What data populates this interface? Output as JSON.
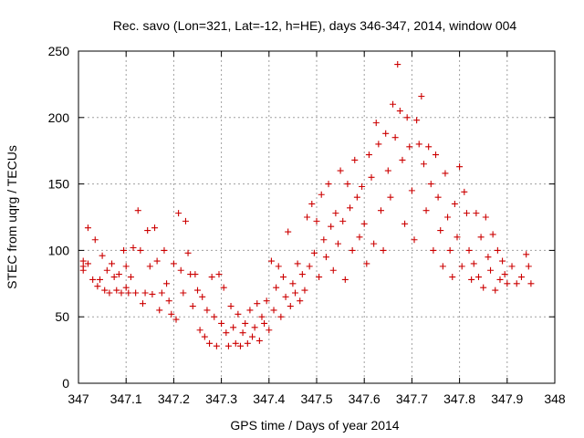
{
  "chart_data": {
    "type": "scatter",
    "title": "Rec. savo (Lon=321, Lat=-12, h=HE), days 346-347, 2014, window 004",
    "xlabel": "GPS time / Days of year 2014",
    "ylabel": "STEC from uqrg / TECUs",
    "xlim": [
      347,
      348
    ],
    "ylim": [
      0,
      250
    ],
    "xticks": [
      347,
      347.1,
      347.2,
      347.3,
      347.4,
      347.5,
      347.6,
      347.7,
      347.8,
      347.9,
      348
    ],
    "xtick_labels": [
      "347",
      "347.1",
      "347.2",
      "347.3",
      "347.4",
      "347.5",
      "347.6",
      "347.7",
      "347.8",
      "347.9",
      "348"
    ],
    "yticks": [
      0,
      50,
      100,
      150,
      200,
      250
    ],
    "ytick_labels": [
      "0",
      "50",
      "100",
      "150",
      "200",
      "250"
    ],
    "grid": true,
    "marker": "+",
    "marker_color": "#cc0000",
    "series": [
      {
        "points": [
          [
            347.01,
            92
          ],
          [
            347.01,
            88
          ],
          [
            347.01,
            85
          ],
          [
            347.02,
            117
          ],
          [
            347.02,
            90
          ],
          [
            347.03,
            78
          ],
          [
            347.035,
            108
          ],
          [
            347.04,
            73
          ],
          [
            347.045,
            78
          ],
          [
            347.05,
            96
          ],
          [
            347.055,
            70
          ],
          [
            347.06,
            85
          ],
          [
            347.065,
            68
          ],
          [
            347.07,
            90
          ],
          [
            347.075,
            80
          ],
          [
            347.08,
            70
          ],
          [
            347.085,
            82
          ],
          [
            347.09,
            68
          ],
          [
            347.095,
            100
          ],
          [
            347.1,
            88
          ],
          [
            347.1,
            72
          ],
          [
            347.105,
            68
          ],
          [
            347.11,
            80
          ],
          [
            347.115,
            102
          ],
          [
            347.12,
            68
          ],
          [
            347.125,
            130
          ],
          [
            347.13,
            100
          ],
          [
            347.135,
            60
          ],
          [
            347.14,
            68
          ],
          [
            347.145,
            115
          ],
          [
            347.15,
            88
          ],
          [
            347.155,
            67
          ],
          [
            347.16,
            117
          ],
          [
            347.165,
            92
          ],
          [
            347.17,
            55
          ],
          [
            347.175,
            68
          ],
          [
            347.18,
            100
          ],
          [
            347.185,
            75
          ],
          [
            347.19,
            62
          ],
          [
            347.195,
            52
          ],
          [
            347.2,
            90
          ],
          [
            347.205,
            48
          ],
          [
            347.21,
            128
          ],
          [
            347.215,
            85
          ],
          [
            347.22,
            68
          ],
          [
            347.225,
            122
          ],
          [
            347.23,
            98
          ],
          [
            347.235,
            82
          ],
          [
            347.24,
            58
          ],
          [
            347.245,
            82
          ],
          [
            347.25,
            70
          ],
          [
            347.255,
            40
          ],
          [
            347.26,
            65
          ],
          [
            347.265,
            35
          ],
          [
            347.27,
            55
          ],
          [
            347.275,
            30
          ],
          [
            347.28,
            80
          ],
          [
            347.285,
            50
          ],
          [
            347.29,
            28
          ],
          [
            347.295,
            82
          ],
          [
            347.3,
            45
          ],
          [
            347.305,
            72
          ],
          [
            347.31,
            38
          ],
          [
            347.315,
            28
          ],
          [
            347.32,
            58
          ],
          [
            347.325,
            42
          ],
          [
            347.33,
            30
          ],
          [
            347.335,
            52
          ],
          [
            347.34,
            28
          ],
          [
            347.345,
            38
          ],
          [
            347.35,
            45
          ],
          [
            347.355,
            30
          ],
          [
            347.36,
            55
          ],
          [
            347.365,
            35
          ],
          [
            347.37,
            42
          ],
          [
            347.375,
            60
          ],
          [
            347.38,
            32
          ],
          [
            347.385,
            50
          ],
          [
            347.39,
            45
          ],
          [
            347.395,
            62
          ],
          [
            347.4,
            40
          ],
          [
            347.405,
            92
          ],
          [
            347.41,
            55
          ],
          [
            347.415,
            72
          ],
          [
            347.42,
            88
          ],
          [
            347.425,
            50
          ],
          [
            347.43,
            80
          ],
          [
            347.435,
            65
          ],
          [
            347.44,
            114
          ],
          [
            347.445,
            58
          ],
          [
            347.45,
            75
          ],
          [
            347.455,
            68
          ],
          [
            347.46,
            90
          ],
          [
            347.465,
            62
          ],
          [
            347.47,
            82
          ],
          [
            347.475,
            70
          ],
          [
            347.48,
            125
          ],
          [
            347.485,
            88
          ],
          [
            347.49,
            135
          ],
          [
            347.495,
            98
          ],
          [
            347.5,
            122
          ],
          [
            347.505,
            80
          ],
          [
            347.51,
            142
          ],
          [
            347.515,
            108
          ],
          [
            347.52,
            95
          ],
          [
            347.525,
            150
          ],
          [
            347.53,
            118
          ],
          [
            347.535,
            85
          ],
          [
            347.54,
            128
          ],
          [
            347.545,
            105
          ],
          [
            347.55,
            160
          ],
          [
            347.555,
            122
          ],
          [
            347.56,
            78
          ],
          [
            347.565,
            150
          ],
          [
            347.57,
            132
          ],
          [
            347.575,
            100
          ],
          [
            347.58,
            168
          ],
          [
            347.585,
            140
          ],
          [
            347.59,
            110
          ],
          [
            347.595,
            148
          ],
          [
            347.6,
            120
          ],
          [
            347.605,
            90
          ],
          [
            347.61,
            172
          ],
          [
            347.615,
            155
          ],
          [
            347.62,
            105
          ],
          [
            347.625,
            196
          ],
          [
            347.63,
            180
          ],
          [
            347.635,
            130
          ],
          [
            347.64,
            100
          ],
          [
            347.645,
            188
          ],
          [
            347.65,
            160
          ],
          [
            347.655,
            140
          ],
          [
            347.66,
            210
          ],
          [
            347.665,
            185
          ],
          [
            347.67,
            240
          ],
          [
            347.675,
            205
          ],
          [
            347.68,
            168
          ],
          [
            347.685,
            120
          ],
          [
            347.69,
            200
          ],
          [
            347.695,
            178
          ],
          [
            347.7,
            145
          ],
          [
            347.705,
            108
          ],
          [
            347.71,
            198
          ],
          [
            347.715,
            180
          ],
          [
            347.72,
            216
          ],
          [
            347.725,
            165
          ],
          [
            347.73,
            130
          ],
          [
            347.735,
            178
          ],
          [
            347.74,
            150
          ],
          [
            347.745,
            100
          ],
          [
            347.75,
            172
          ],
          [
            347.755,
            140
          ],
          [
            347.76,
            115
          ],
          [
            347.765,
            88
          ],
          [
            347.77,
            158
          ],
          [
            347.775,
            125
          ],
          [
            347.78,
            100
          ],
          [
            347.785,
            80
          ],
          [
            347.79,
            135
          ],
          [
            347.795,
            110
          ],
          [
            347.8,
            163
          ],
          [
            347.805,
            88
          ],
          [
            347.81,
            144
          ],
          [
            347.815,
            128
          ],
          [
            347.82,
            100
          ],
          [
            347.825,
            78
          ],
          [
            347.83,
            90
          ],
          [
            347.835,
            128
          ],
          [
            347.84,
            80
          ],
          [
            347.845,
            110
          ],
          [
            347.85,
            72
          ],
          [
            347.855,
            125
          ],
          [
            347.86,
            95
          ],
          [
            347.865,
            85
          ],
          [
            347.87,
            112
          ],
          [
            347.875,
            70
          ],
          [
            347.88,
            100
          ],
          [
            347.885,
            78
          ],
          [
            347.89,
            92
          ],
          [
            347.895,
            82
          ],
          [
            347.9,
            75
          ],
          [
            347.91,
            88
          ],
          [
            347.92,
            75
          ],
          [
            347.93,
            80
          ],
          [
            347.94,
            97
          ],
          [
            347.945,
            88
          ],
          [
            347.95,
            75
          ]
        ]
      }
    ]
  }
}
